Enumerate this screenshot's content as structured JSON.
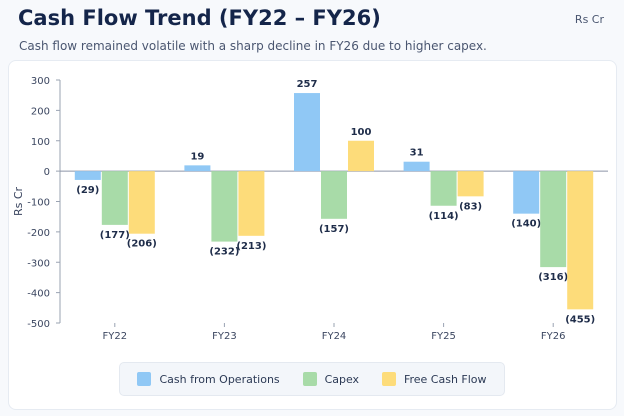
{
  "chart_data": {
    "type": "bar",
    "title": "Cash Flow Trend (FY22 – FY26)",
    "subtitle": "Cash flow remained volatile with a sharp decline in FY26 due to higher capex.",
    "unit_label": "Rs Cr",
    "ylabel": "Rs Cr",
    "xlabel": "",
    "categories": [
      "FY22",
      "FY23",
      "FY24",
      "FY25",
      "FY26"
    ],
    "ylim": [
      -500,
      300
    ],
    "yticks": [
      300,
      200,
      100,
      0,
      -100,
      -200,
      -300,
      -400,
      -500
    ],
    "grid": false,
    "legend_position": "bottom",
    "series": [
      {
        "name": "Cash from Operations",
        "color": "#90c8f5",
        "values": [
          -29,
          19,
          257,
          31,
          -140
        ],
        "labels": [
          "(29)",
          "19",
          "257",
          "31",
          "(140)"
        ]
      },
      {
        "name": "Capex",
        "color": "#a8dba8",
        "values": [
          -177,
          -232,
          -157,
          -114,
          -316
        ],
        "labels": [
          "(177)",
          "(232)",
          "(157)",
          "(114)",
          "(316)"
        ]
      },
      {
        "name": "Free Cash Flow",
        "color": "#fddc7a",
        "values": [
          -206,
          -213,
          100,
          -83,
          -455
        ],
        "labels": [
          "(206)",
          "(213)",
          "100",
          "(83)",
          "(455)"
        ]
      }
    ]
  }
}
